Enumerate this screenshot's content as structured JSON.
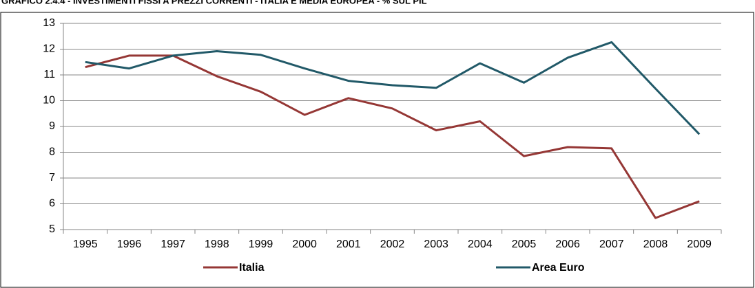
{
  "chart_data": {
    "type": "line",
    "title": "GRAFICO 2.4.4 - INVESTIMENTI FISSI A PREZZI CORRENTI - ITALIA E MEDIA EUROPEA - % SUL PIL",
    "categories": [
      "1995",
      "1996",
      "1997",
      "1998",
      "1999",
      "2000",
      "2001",
      "2002",
      "2003",
      "2004",
      "2005",
      "2006",
      "2007",
      "2008",
      "2009"
    ],
    "series": [
      {
        "name": "Italia",
        "color": "#953735",
        "values": [
          11.3,
          11.75,
          11.75,
          10.95,
          10.35,
          9.45,
          10.1,
          9.7,
          8.85,
          9.2,
          7.85,
          8.2,
          8.15,
          5.45,
          6.1
        ]
      },
      {
        "name": "Area Euro",
        "color": "#215968",
        "values": [
          11.5,
          11.25,
          11.75,
          11.92,
          11.78,
          11.25,
          10.77,
          10.6,
          10.5,
          11.45,
          10.7,
          11.67,
          12.27,
          10.47,
          8.7
        ]
      }
    ],
    "ylim": [
      5,
      13
    ],
    "yticks": [
      5,
      6,
      7,
      8,
      9,
      10,
      11,
      12,
      13
    ],
    "grid": true,
    "legend": "bottom"
  }
}
